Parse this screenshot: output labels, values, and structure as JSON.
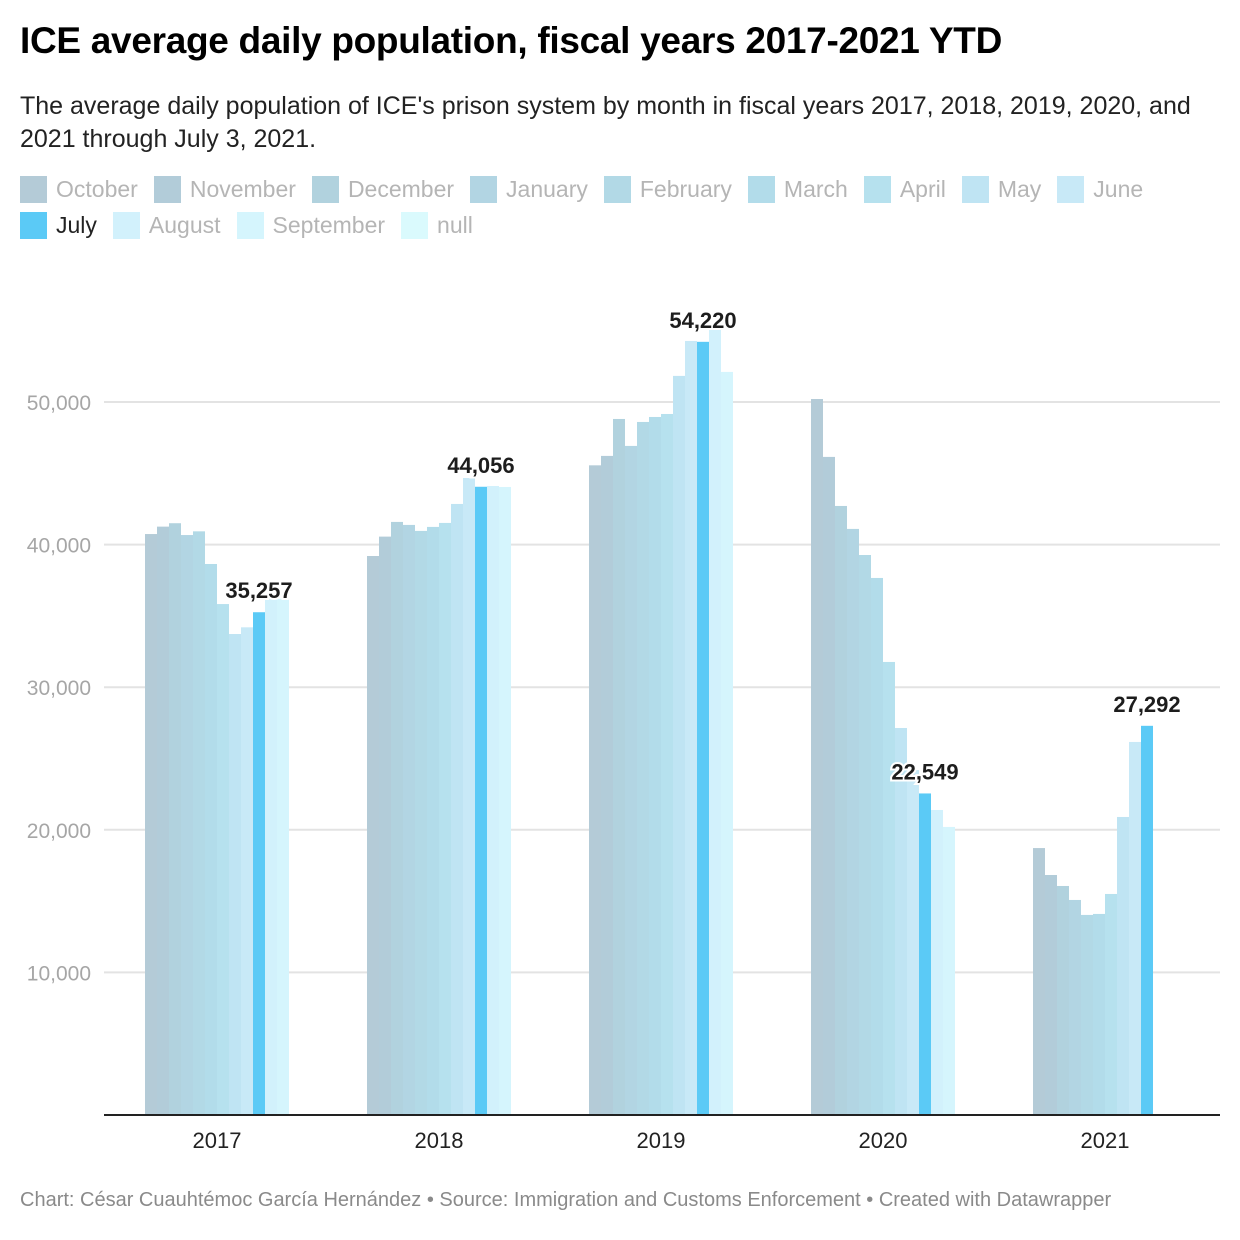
{
  "header": {
    "title": "ICE average daily population, fiscal years 2017-2021 YTD",
    "subtitle": "The average daily population of ICE's prison system by month in fiscal years 2017, 2018, 2019, 2020, and 2021 through July 3, 2021."
  },
  "legend": [
    {
      "label": "October",
      "color": "#b4cbd7",
      "active": false
    },
    {
      "label": "November",
      "color": "#b2ccd9",
      "active": false
    },
    {
      "label": "December",
      "color": "#b1d2de",
      "active": false
    },
    {
      "label": "January",
      "color": "#b2d5e3",
      "active": false
    },
    {
      "label": "February",
      "color": "#b2d9e6",
      "active": false
    },
    {
      "label": "March",
      "color": "#b2dcea",
      "active": false
    },
    {
      "label": "April",
      "color": "#b6e1ee",
      "active": false
    },
    {
      "label": "May",
      "color": "#bfe4f3",
      "active": false
    },
    {
      "label": "June",
      "color": "#c8e9f7",
      "active": false
    },
    {
      "label": "July",
      "color": "#5bcaf6",
      "active": true
    },
    {
      "label": "August",
      "color": "#d2f1fc",
      "active": false
    },
    {
      "label": "September",
      "color": "#d5f5fd",
      "active": false
    },
    {
      "label": "null",
      "color": "#dafafd",
      "active": false
    }
  ],
  "chart_data": {
    "type": "bar",
    "title": "ICE average daily population, fiscal years 2017-2021 YTD",
    "xlabel": "",
    "ylabel": "",
    "categories": [
      "2017",
      "2018",
      "2019",
      "2020",
      "2021"
    ],
    "ylim": [
      0,
      57000
    ],
    "yticks": [
      10000,
      20000,
      30000,
      40000,
      50000
    ],
    "ytick_labels": [
      "10,000",
      "20,000",
      "30,000",
      "40,000",
      "50,000"
    ],
    "grid": true,
    "legend_position": "top",
    "highlight_series": "July",
    "series": [
      {
        "name": "October",
        "values": [
          40740,
          39200,
          45560,
          50210,
          18720
        ]
      },
      {
        "name": "November",
        "values": [
          41260,
          40560,
          46220,
          46150,
          16830
        ]
      },
      {
        "name": "December",
        "values": [
          41500,
          41590,
          48810,
          42710,
          16060
        ]
      },
      {
        "name": "January",
        "values": [
          40670,
          41380,
          46920,
          41100,
          15080
        ]
      },
      {
        "name": "February",
        "values": [
          40930,
          40960,
          48600,
          39270,
          14030
        ]
      },
      {
        "name": "March",
        "values": [
          38640,
          41240,
          48950,
          37660,
          14100
        ]
      },
      {
        "name": "April",
        "values": [
          35830,
          41520,
          49160,
          31770,
          15500
        ]
      },
      {
        "name": "May",
        "values": [
          33730,
          42850,
          51830,
          27140,
          20900
        ]
      },
      {
        "name": "June",
        "values": [
          34200,
          44670,
          54280,
          24190,
          26160
        ]
      },
      {
        "name": "July",
        "values": [
          35257,
          44056,
          54220,
          22549,
          27292
        ]
      },
      {
        "name": "August",
        "values": [
          36300,
          44110,
          55240,
          21390,
          null
        ]
      },
      {
        "name": "September",
        "values": [
          36200,
          44040,
          52110,
          20200,
          null
        ]
      }
    ],
    "data_labels": [
      {
        "category": "2017",
        "series": "July",
        "text": "35,257"
      },
      {
        "category": "2018",
        "series": "July",
        "text": "44,056"
      },
      {
        "category": "2019",
        "series": "July",
        "text": "54,220"
      },
      {
        "category": "2020",
        "series": "July",
        "text": "22,549"
      },
      {
        "category": "2021",
        "series": "July",
        "text": "27,292"
      }
    ]
  },
  "footer": {
    "text": "Chart: César Cuauhtémoc García Hernández • Source: Immigration and Customs Enforcement • Created with Datawrapper"
  }
}
